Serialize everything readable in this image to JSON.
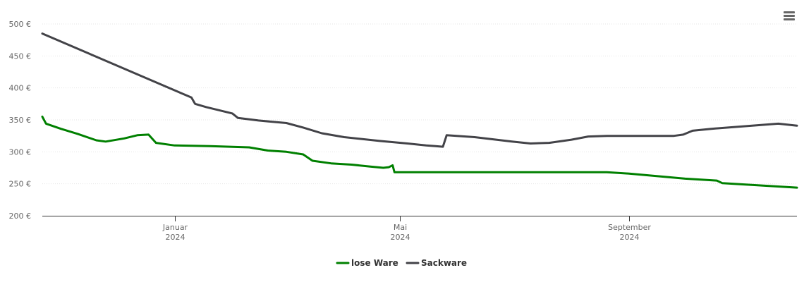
{
  "chart_data": {
    "type": "line",
    "ylim": [
      200,
      500
    ],
    "yticks": [
      {
        "value": 200,
        "label": "200 €"
      },
      {
        "value": 250,
        "label": "250 €"
      },
      {
        "value": 300,
        "label": "300 €"
      },
      {
        "value": 350,
        "label": "350 €"
      },
      {
        "value": 400,
        "label": "400 €"
      },
      {
        "value": 450,
        "label": "450 €"
      },
      {
        "value": 500,
        "label": "500 €"
      }
    ],
    "xlim": [
      "2023-10-22",
      "2024-11-30"
    ],
    "xticks": [
      {
        "date": "2024-01-01",
        "label": "Januar",
        "year": "2024"
      },
      {
        "date": "2024-05-01",
        "label": "Mai",
        "year": "2024"
      },
      {
        "date": "2024-09-01",
        "label": "September",
        "year": "2024"
      }
    ],
    "grid": true,
    "legend": "bottom",
    "series": [
      {
        "name": "lose Ware",
        "color": "#008000",
        "points": [
          [
            "2023-10-22",
            355
          ],
          [
            "2023-10-24",
            344
          ],
          [
            "2023-11-01",
            336
          ],
          [
            "2023-11-10",
            328
          ],
          [
            "2023-11-20",
            318
          ],
          [
            "2023-11-25",
            316
          ],
          [
            "2023-12-05",
            321
          ],
          [
            "2023-12-12",
            326
          ],
          [
            "2023-12-18",
            327
          ],
          [
            "2023-12-22",
            314
          ],
          [
            "2024-01-01",
            310
          ],
          [
            "2024-01-20",
            309
          ],
          [
            "2024-02-10",
            307
          ],
          [
            "2024-02-20",
            302
          ],
          [
            "2024-03-01",
            300
          ],
          [
            "2024-03-10",
            296
          ],
          [
            "2024-03-15",
            286
          ],
          [
            "2024-03-25",
            282
          ],
          [
            "2024-04-05",
            280
          ],
          [
            "2024-04-15",
            277
          ],
          [
            "2024-04-22",
            275
          ],
          [
            "2024-04-25",
            276
          ],
          [
            "2024-04-27",
            279
          ],
          [
            "2024-04-28",
            268
          ],
          [
            "2024-08-20",
            268
          ],
          [
            "2024-09-01",
            266
          ],
          [
            "2024-10-01",
            258
          ],
          [
            "2024-10-18",
            255
          ],
          [
            "2024-10-21",
            251
          ],
          [
            "2024-11-30",
            244
          ]
        ]
      },
      {
        "name": "Sackware",
        "color": "#434348",
        "points": [
          [
            "2023-10-22",
            485
          ],
          [
            "2024-01-10",
            385
          ],
          [
            "2024-01-12",
            375
          ],
          [
            "2024-01-18",
            370
          ],
          [
            "2024-02-01",
            360
          ],
          [
            "2024-02-04",
            353
          ],
          [
            "2024-02-15",
            349
          ],
          [
            "2024-03-01",
            345
          ],
          [
            "2024-03-10",
            338
          ],
          [
            "2024-03-20",
            329
          ],
          [
            "2024-04-01",
            323
          ],
          [
            "2024-04-20",
            317
          ],
          [
            "2024-05-05",
            313
          ],
          [
            "2024-05-15",
            310
          ],
          [
            "2024-05-20",
            309
          ],
          [
            "2024-05-24",
            308
          ],
          [
            "2024-05-26",
            326
          ],
          [
            "2024-06-10",
            323
          ],
          [
            "2024-06-30",
            316
          ],
          [
            "2024-07-10",
            313
          ],
          [
            "2024-07-20",
            314
          ],
          [
            "2024-08-01",
            319
          ],
          [
            "2024-08-10",
            324
          ],
          [
            "2024-08-20",
            325
          ],
          [
            "2024-09-10",
            325
          ],
          [
            "2024-09-15",
            325
          ],
          [
            "2024-09-25",
            325
          ],
          [
            "2024-09-30",
            327
          ],
          [
            "2024-10-05",
            333
          ],
          [
            "2024-10-15",
            336
          ],
          [
            "2024-11-20",
            344
          ],
          [
            "2024-11-30",
            341
          ]
        ]
      }
    ]
  },
  "toolbar": {
    "menu_icon": "hamburger-menu-icon"
  }
}
